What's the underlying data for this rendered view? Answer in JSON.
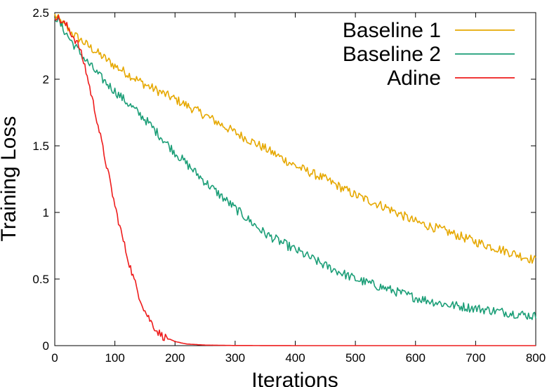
{
  "chart_data": {
    "type": "line",
    "title": "",
    "xlabel": "Iterations",
    "ylabel": "Training Loss",
    "xlim": [
      0,
      800
    ],
    "ylim": [
      0,
      2.5
    ],
    "xticks": [
      0,
      100,
      200,
      300,
      400,
      500,
      600,
      700,
      800
    ],
    "yticks": [
      0,
      0.5,
      1,
      1.5,
      2,
      2.5
    ],
    "xtick_labels": [
      "0",
      "100",
      "200",
      "300",
      "400",
      "500",
      "600",
      "700",
      "800"
    ],
    "ytick_labels": [
      "0",
      "0.5",
      "1",
      "1.5",
      "2",
      "2.5"
    ],
    "grid": false,
    "legend_position": "top-right",
    "series": [
      {
        "name": "Baseline 1",
        "color": "#e6a800",
        "x": [
          0,
          25,
          50,
          100,
          150,
          200,
          250,
          300,
          350,
          400,
          450,
          500,
          550,
          600,
          650,
          700,
          750,
          800
        ],
        "y": [
          2.48,
          2.36,
          2.27,
          2.1,
          1.96,
          1.85,
          1.73,
          1.6,
          1.48,
          1.35,
          1.25,
          1.13,
          1.04,
          0.93,
          0.86,
          0.78,
          0.71,
          0.64
        ]
      },
      {
        "name": "Baseline 2",
        "color": "#1b9e77",
        "x": [
          0,
          25,
          50,
          75,
          100,
          150,
          200,
          250,
          300,
          350,
          400,
          450,
          500,
          550,
          600,
          650,
          700,
          750,
          800
        ],
        "y": [
          2.48,
          2.3,
          2.15,
          2.02,
          1.91,
          1.7,
          1.45,
          1.23,
          1.03,
          0.84,
          0.72,
          0.6,
          0.5,
          0.43,
          0.36,
          0.31,
          0.28,
          0.25,
          0.22
        ]
      },
      {
        "name": "Adine",
        "color": "#ee1c1c",
        "x": [
          0,
          20,
          40,
          50,
          60,
          70,
          80,
          90,
          100,
          110,
          120,
          130,
          140,
          150,
          160,
          170,
          180,
          200,
          220,
          250,
          300,
          400,
          500,
          600,
          700,
          800
        ],
        "y": [
          2.48,
          2.4,
          2.25,
          2.1,
          1.9,
          1.7,
          1.48,
          1.27,
          1.05,
          0.86,
          0.68,
          0.52,
          0.38,
          0.26,
          0.18,
          0.11,
          0.07,
          0.03,
          0.012,
          0.004,
          0.001,
          0,
          0,
          0,
          0,
          0
        ]
      }
    ]
  }
}
